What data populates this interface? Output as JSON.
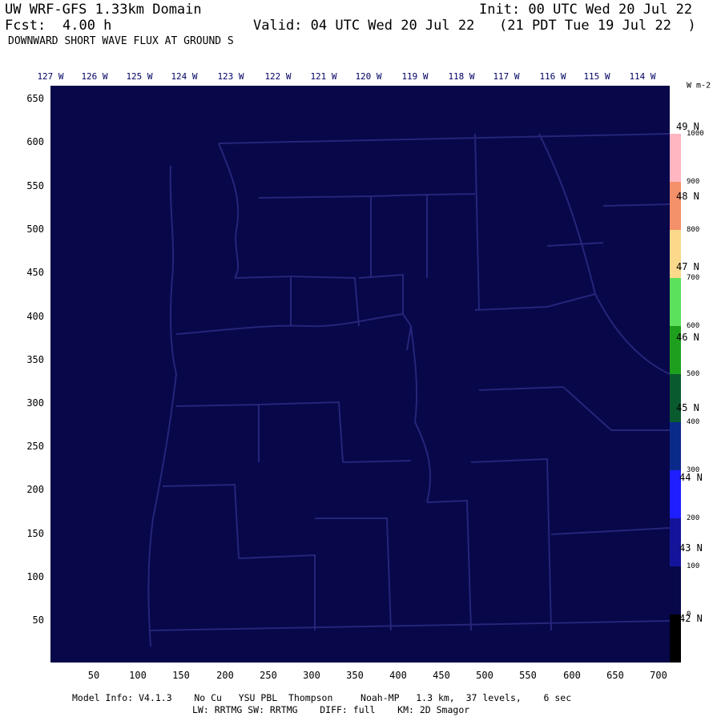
{
  "header": {
    "title": "UW WRF-GFS 1.33km Domain",
    "init": "Init: 00 UTC Wed 20 Jul 22",
    "fcst_label": "Fcst:",
    "fcst_value": "4.00 h",
    "valid": "Valid: 04 UTC Wed 20 Jul 22   (21 PDT Tue 19 Jul 22  )",
    "field": "DOWNWARD SHORT WAVE FLUX AT GROUND S"
  },
  "map": {
    "fill_color": "#07074a",
    "border_color": "#25257a",
    "longitude_labels": [
      "127 W",
      "126 W",
      "125 W",
      "124 W",
      "123 W",
      "122 W",
      "121 W",
      "120 W",
      "119 W",
      "118 W",
      "117 W",
      "116 W",
      "115 W",
      "114 W"
    ],
    "latitude_labels": [
      "49 N",
      "48 N",
      "47 N",
      "46 N",
      "45 N",
      "44 N",
      "43 N",
      "42 N"
    ],
    "y_ticks": [
      "650",
      "600",
      "550",
      "500",
      "450",
      "400",
      "350",
      "300",
      "250",
      "200",
      "150",
      "100",
      "50"
    ],
    "x_ticks": [
      "50",
      "100",
      "150",
      "200",
      "250",
      "300",
      "350",
      "400",
      "450",
      "500",
      "550",
      "600",
      "650",
      "700"
    ]
  },
  "colorbar": {
    "units": "W m-2",
    "labels": [
      "1000",
      "900",
      "800",
      "700",
      "600",
      "500",
      "400",
      "300",
      "200",
      "100",
      "0"
    ],
    "colors_top_to_bottom": [
      "#ffffff",
      "#ffb6c1",
      "#f4906a",
      "#fbd98a",
      "#5ce15c",
      "#1ea01e",
      "#0a5a30",
      "#0a2a8a",
      "#1e1eff",
      "#14149a",
      "#07074a",
      "#000000"
    ]
  },
  "footer": {
    "line1": "Model Info: V4.1.3    No Cu   YSU PBL  Thompson     Noah-MP   1.3 km,  37 levels,    6 sec",
    "line2": "LW: RRTMG SW: RRTMG    DIFF: full    KM: 2D Smagor"
  }
}
